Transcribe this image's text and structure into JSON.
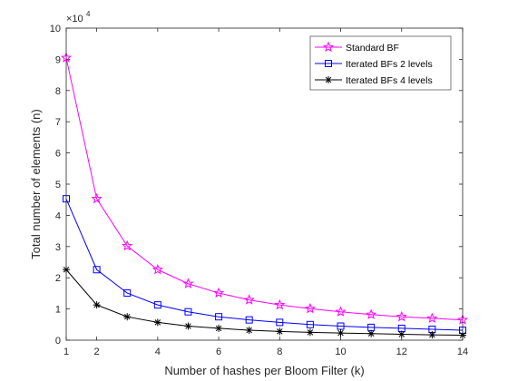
{
  "chart_data": {
    "type": "line",
    "title": "",
    "xlabel": "Number of hashes per Bloom Filter (k)",
    "ylabel": "Total number of elements (n)",
    "y_multiplier_base": "×10",
    "y_multiplier_exp": "4",
    "xlim": [
      1,
      14
    ],
    "ylim": [
      0,
      10
    ],
    "x_ticks": [
      1,
      2,
      4,
      6,
      8,
      10,
      12,
      14
    ],
    "y_ticks": [
      0,
      1,
      2,
      3,
      4,
      5,
      6,
      7,
      8,
      9,
      10
    ],
    "grid": false,
    "legend_placement": "top-right",
    "x": [
      1,
      2,
      3,
      4,
      5,
      6,
      7,
      8,
      9,
      10,
      11,
      12,
      13,
      14
    ],
    "series": [
      {
        "name": "Standard BF",
        "color": "#ff00ff",
        "marker": "star",
        "values": [
          9.05,
          4.53,
          3.02,
          2.26,
          1.81,
          1.51,
          1.29,
          1.13,
          1.01,
          0.91,
          0.82,
          0.75,
          0.7,
          0.65
        ]
      },
      {
        "name": "Iterated BFs 2 levels",
        "color": "#0000ff",
        "marker": "square",
        "values": [
          4.53,
          2.26,
          1.51,
          1.13,
          0.91,
          0.75,
          0.65,
          0.57,
          0.5,
          0.45,
          0.41,
          0.38,
          0.35,
          0.32
        ]
      },
      {
        "name": "Iterated BFs 4 levels",
        "color": "#000000",
        "marker": "asterisk",
        "values": [
          2.26,
          1.13,
          0.75,
          0.57,
          0.45,
          0.38,
          0.32,
          0.28,
          0.25,
          0.23,
          0.21,
          0.19,
          0.17,
          0.16
        ]
      }
    ]
  }
}
